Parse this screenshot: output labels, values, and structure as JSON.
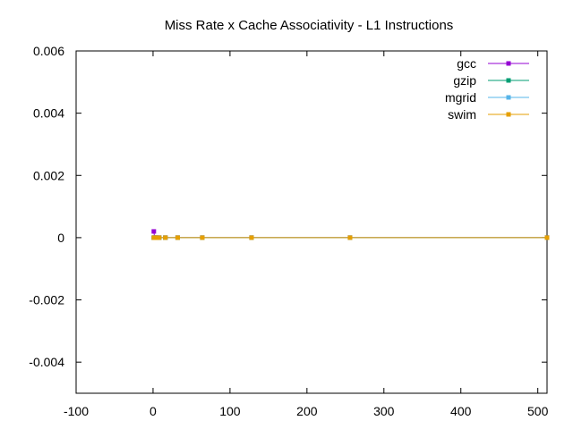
{
  "chart_data": {
    "type": "line",
    "title": "Miss Rate x Cache Associativity - L1 Instructions",
    "xlabel": "",
    "ylabel": "",
    "xlim": [
      -100,
      512
    ],
    "ylim": [
      -0.005,
      0.006
    ],
    "x_ticks": [
      -100,
      0,
      100,
      200,
      300,
      400,
      500
    ],
    "x_tick_labels": [
      "-100",
      "0",
      "100",
      "200",
      "300",
      "400",
      "500"
    ],
    "y_ticks": [
      -0.004,
      -0.002,
      0,
      0.002,
      0.004,
      0.006
    ],
    "y_tick_labels": [
      "-0.004",
      "-0.002",
      "0",
      "0.002",
      "0.004",
      "0.006"
    ],
    "legend_position": "top-right",
    "grid": false,
    "series": [
      {
        "name": "gcc",
        "color": "#9400d3",
        "x": [
          1,
          2,
          4,
          8,
          16,
          32,
          64,
          128,
          256,
          512
        ],
        "y": [
          0.0002,
          0,
          0,
          0,
          0,
          0,
          0,
          0,
          0,
          0
        ]
      },
      {
        "name": "gzip",
        "color": "#009e73",
        "x": [
          1,
          2,
          4,
          8,
          16,
          32,
          64,
          128,
          256,
          512
        ],
        "y": [
          0,
          0,
          0,
          0,
          0,
          0,
          0,
          0,
          0,
          0
        ]
      },
      {
        "name": "mgrid",
        "color": "#56b4e9",
        "x": [
          1,
          2,
          4,
          8,
          16,
          32,
          64,
          128,
          256,
          512
        ],
        "y": [
          0,
          0,
          0,
          0,
          0,
          0,
          0,
          0,
          0,
          0
        ]
      },
      {
        "name": "swim",
        "color": "#e69f00",
        "x": [
          1,
          2,
          4,
          8,
          16,
          32,
          64,
          128,
          256,
          512
        ],
        "y": [
          0,
          0,
          0,
          0,
          0,
          0,
          0,
          0,
          0,
          0
        ]
      }
    ]
  }
}
